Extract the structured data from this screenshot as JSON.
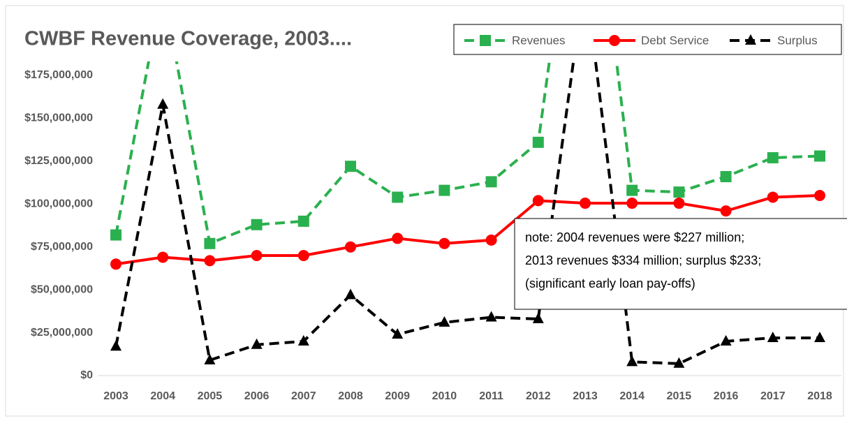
{
  "chart_data": {
    "type": "line",
    "title": "CWBF Revenue Coverage, 2003....",
    "categories": [
      "2003",
      "2004",
      "2005",
      "2006",
      "2007",
      "2008",
      "2009",
      "2010",
      "2011",
      "2012",
      "2013",
      "2014",
      "2015",
      "2016",
      "2017",
      "2018"
    ],
    "series": [
      {
        "name": "Revenues",
        "color": "#2bb04f",
        "marker": "square",
        "dashed": true,
        "values": [
          82000000,
          227000000,
          77000000,
          88000000,
          90000000,
          122000000,
          104000000,
          108000000,
          113000000,
          136000000,
          334000000,
          108000000,
          107000000,
          116000000,
          127000000,
          128000000
        ]
      },
      {
        "name": "Debt Service",
        "color": "#ff0000",
        "marker": "circle",
        "dashed": false,
        "values": [
          65000000,
          69000000,
          67000000,
          70000000,
          70000000,
          75000000,
          80000000,
          77000000,
          79000000,
          102000000,
          100500000,
          100500000,
          100500000,
          96000000,
          104000000,
          105000000
        ]
      },
      {
        "name": "Surplus",
        "color": "#000000",
        "marker": "triangle",
        "dashed": true,
        "values": [
          17000000,
          158000000,
          9000000,
          18000000,
          20000000,
          47000000,
          24000000,
          31000000,
          34000000,
          33000000,
          233000000,
          8000000,
          7000000,
          20000000,
          22000000,
          22000000
        ]
      }
    ],
    "ylim": [
      0,
      175000000
    ],
    "yticks": [
      {
        "value": 0,
        "label": "$0"
      },
      {
        "value": 25000000,
        "label": "$25,000,000"
      },
      {
        "value": 50000000,
        "label": "$50,000,000"
      },
      {
        "value": 75000000,
        "label": "$75,000,000"
      },
      {
        "value": 100000000,
        "label": "$100,000,000"
      },
      {
        "value": 125000000,
        "label": "$125,000,000"
      },
      {
        "value": 150000000,
        "label": "$150,000,000"
      },
      {
        "value": 175000000,
        "label": "$175,000,000"
      }
    ],
    "grid": false,
    "legend": "top-right",
    "annotation": [
      "note:  2004 revenues were $227 million;",
      "2013 revenues  $334 million; surplus $233;",
      "(significant early loan pay-offs)"
    ]
  }
}
